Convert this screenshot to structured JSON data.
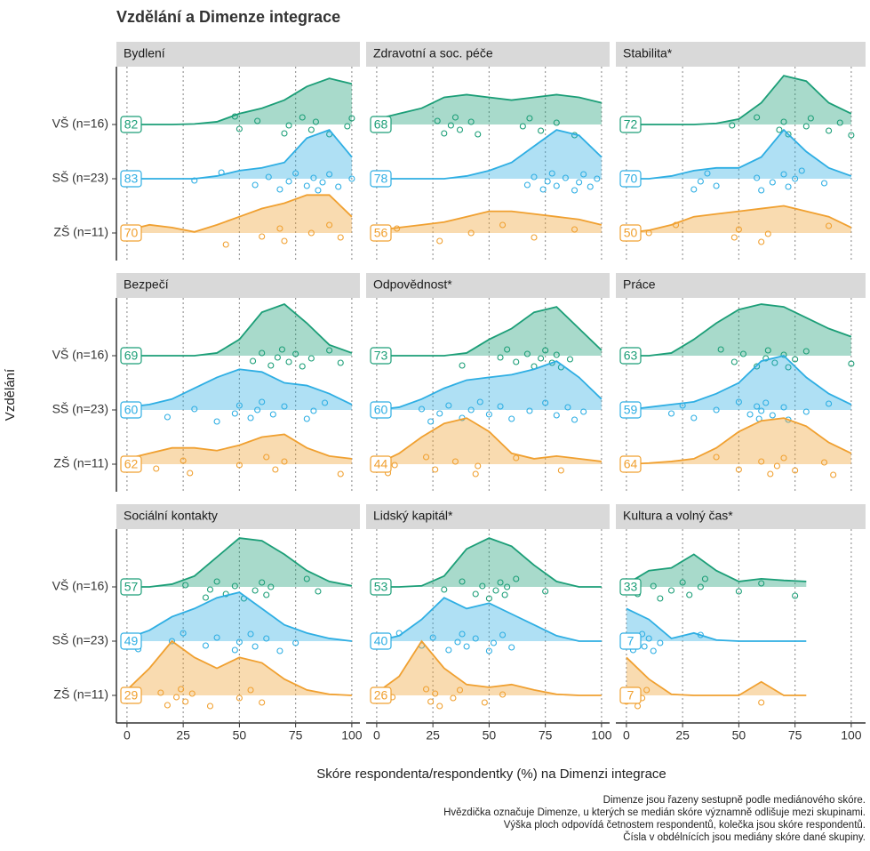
{
  "chart_data": {
    "type": "ridgeline",
    "title": "Vzdělání a Dimenze integrace",
    "x_label": "Skóre respondenta/respondentky (%) na Dimenzi integrace",
    "y_label": "Vzdělání",
    "caption": [
      "Dimenze jsou řazeny sestupně podle mediánového skóre.",
      "Hvězdička označuje Dimenze, u kterých se medián skóre významně odlišuje mezi skupinami.",
      "Výška ploch odpovídá četnostem respondentů, kolečka jsou skóre respondentů.",
      "Čísla v obdélnících jsou mediány skóre dané skupiny."
    ],
    "xlim": [
      -4.7,
      103.6
    ],
    "xticks": [
      0,
      25,
      50,
      75,
      100
    ],
    "grid": true,
    "x": [
      0,
      10,
      20,
      30,
      40,
      50,
      60,
      70,
      80,
      90,
      100
    ],
    "groups": [
      {
        "name": "VŠ (n=16)",
        "color": "#1b9e77"
      },
      {
        "name": "SŠ (n=23)",
        "color": "#2eaee3"
      },
      {
        "name": "ZŠ (n=11)",
        "color": "#f0a030"
      }
    ],
    "panels": [
      {
        "title": "Bydlení",
        "series": [
          {
            "median": 82,
            "values": [
              0,
              0,
              0,
              0.01,
              0.05,
              0.2,
              0.3,
              0.45,
              0.7,
              0.85,
              0.75
            ],
            "points": [
              48,
              50,
              58,
              70,
              72,
              78,
              82,
              84,
              90,
              98,
              100
            ]
          },
          {
            "median": 83,
            "values": [
              0,
              0,
              0,
              0,
              0.05,
              0.15,
              0.2,
              0.3,
              0.75,
              0.9,
              0.4
            ],
            "points": [
              30,
              42,
              57,
              63,
              68,
              72,
              75,
              80,
              83,
              85,
              87,
              90,
              94,
              100
            ]
          },
          {
            "median": 70,
            "values": [
              0.05,
              0.15,
              0.1,
              0.02,
              0.15,
              0.3,
              0.45,
              0.55,
              0.7,
              0.7,
              0.3
            ],
            "points": [
              44,
              60,
              68,
              70,
              82,
              90,
              95
            ]
          }
        ]
      },
      {
        "title": "Zdravotní a soc. péče",
        "series": [
          {
            "median": 68,
            "values": [
              0.1,
              0.2,
              0.3,
              0.5,
              0.55,
              0.5,
              0.45,
              0.5,
              0.55,
              0.5,
              0.4
            ],
            "points": [
              27,
              30,
              33,
              35,
              37,
              42,
              45,
              65,
              68,
              73,
              80,
              88
            ]
          },
          {
            "median": 78,
            "values": [
              0,
              0,
              0,
              0,
              0.05,
              0.15,
              0.3,
              0.6,
              0.9,
              0.8,
              0.4
            ],
            "points": [
              67,
              70,
              74,
              76,
              78,
              80,
              84,
              88,
              90,
              92,
              95,
              98
            ]
          },
          {
            "median": 56,
            "values": [
              0.05,
              0.1,
              0.15,
              0.2,
              0.3,
              0.4,
              0.4,
              0.35,
              0.3,
              0.25,
              0.15
            ],
            "points": [
              9,
              28,
              42,
              56,
              70,
              88
            ]
          }
        ]
      },
      {
        "title": "Stabilita*",
        "series": [
          {
            "median": 72,
            "values": [
              0,
              0,
              0,
              0,
              0.02,
              0.1,
              0.4,
              0.9,
              0.8,
              0.4,
              0.2
            ],
            "points": [
              47,
              58,
              68,
              70,
              72,
              80,
              82,
              90,
              95,
              100
            ]
          },
          {
            "median": 70,
            "values": [
              0,
              0,
              0.05,
              0.15,
              0.2,
              0.2,
              0.4,
              0.9,
              0.5,
              0.2,
              0.05
            ],
            "points": [
              30,
              33,
              36,
              40,
              58,
              60,
              65,
              70,
              72,
              75,
              78,
              88
            ]
          },
          {
            "median": 50,
            "values": [
              0,
              0.05,
              0.15,
              0.3,
              0.35,
              0.4,
              0.45,
              0.5,
              0.4,
              0.3,
              0.1
            ],
            "points": [
              10,
              22,
              48,
              50,
              60,
              63,
              90
            ]
          }
        ]
      },
      {
        "title": "Bezpečí",
        "series": [
          {
            "median": 69,
            "values": [
              0,
              0,
              0,
              0,
              0.05,
              0.3,
              0.8,
              0.95,
              0.6,
              0.2,
              0.05
            ],
            "points": [
              56,
              60,
              64,
              67,
              69,
              72,
              75,
              78,
              82,
              90,
              95
            ]
          },
          {
            "median": 60,
            "values": [
              0.05,
              0.1,
              0.2,
              0.4,
              0.6,
              0.75,
              0.7,
              0.5,
              0.45,
              0.3,
              0.1
            ],
            "points": [
              2,
              18,
              30,
              40,
              48,
              50,
              55,
              58,
              60,
              65,
              70,
              80,
              83,
              88
            ]
          },
          {
            "median": 62,
            "values": [
              0.1,
              0.2,
              0.3,
              0.3,
              0.25,
              0.35,
              0.5,
              0.55,
              0.3,
              0.15,
              0.1
            ],
            "points": [
              13,
              25,
              28,
              50,
              62,
              66,
              70,
              95
            ]
          }
        ]
      },
      {
        "title": "Odpovědnost*",
        "series": [
          {
            "median": 73,
            "values": [
              0,
              0,
              0,
              0,
              0.05,
              0.3,
              0.5,
              0.8,
              0.9,
              0.5,
              0.1
            ],
            "points": [
              38,
              55,
              58,
              62,
              67,
              70,
              73,
              75,
              78,
              80,
              82,
              86
            ]
          },
          {
            "median": 60,
            "values": [
              0,
              0.05,
              0.2,
              0.4,
              0.55,
              0.6,
              0.65,
              0.75,
              0.9,
              0.6,
              0.2
            ],
            "points": [
              20,
              24,
              28,
              32,
              38,
              42,
              46,
              50,
              55,
              60,
              68,
              75,
              80,
              85,
              88,
              92
            ]
          },
          {
            "median": 44,
            "values": [
              0,
              0.2,
              0.5,
              0.75,
              0.85,
              0.6,
              0.2,
              0.1,
              0.15,
              0.1,
              0.05
            ],
            "points": [
              5,
              8,
              22,
              26,
              35,
              44,
              45,
              62,
              82
            ]
          }
        ]
      },
      {
        "title": "Práce",
        "series": [
          {
            "median": 63,
            "values": [
              0,
              0,
              0.05,
              0.3,
              0.6,
              0.85,
              0.95,
              0.9,
              0.7,
              0.5,
              0.35
            ],
            "points": [
              42,
              48,
              52,
              58,
              62,
              63,
              66,
              70,
              72,
              75,
              80,
              100
            ]
          },
          {
            "median": 59,
            "values": [
              0,
              0.05,
              0.1,
              0.15,
              0.3,
              0.5,
              0.9,
              1.0,
              0.6,
              0.3,
              0.1
            ],
            "points": [
              20,
              25,
              30,
              40,
              50,
              55,
              58,
              59,
              60,
              62,
              65,
              70,
              72,
              80,
              90
            ]
          },
          {
            "median": 64,
            "values": [
              0,
              0.02,
              0.05,
              0.1,
              0.3,
              0.6,
              0.8,
              0.85,
              0.7,
              0.4,
              0.2
            ],
            "points": [
              40,
              50,
              60,
              64,
              67,
              70,
              75,
              88,
              92
            ]
          }
        ]
      },
      {
        "title": "Sociální kontakty",
        "series": [
          {
            "median": 57,
            "values": [
              0,
              0,
              0.05,
              0.2,
              0.55,
              0.9,
              0.85,
              0.6,
              0.3,
              0.1,
              0.02
            ],
            "points": [
              26,
              35,
              37,
              40,
              44,
              48,
              52,
              57,
              60,
              62,
              64,
              80,
              85
            ]
          },
          {
            "median": 49,
            "values": [
              0.05,
              0.2,
              0.45,
              0.6,
              0.8,
              0.9,
              0.6,
              0.3,
              0.15,
              0.05,
              0
            ],
            "points": [
              5,
              20,
              25,
              35,
              40,
              48,
              50,
              55,
              57,
              62,
              68,
              75
            ]
          },
          {
            "median": 29,
            "values": [
              0.1,
              0.5,
              1.0,
              0.7,
              0.5,
              0.7,
              0.6,
              0.3,
              0.1,
              0.02,
              0
            ],
            "points": [
              15,
              18,
              22,
              24,
              26,
              29,
              37,
              50,
              55,
              60
            ]
          }
        ]
      },
      {
        "title": "Lidský kapitál*",
        "series": [
          {
            "median": 53,
            "values": [
              0,
              0,
              0.02,
              0.2,
              0.7,
              0.9,
              0.75,
              0.4,
              0.1,
              0,
              0
            ],
            "points": [
              30,
              38,
              44,
              47,
              50,
              53,
              55,
              57,
              58,
              62,
              75
            ]
          },
          {
            "median": 40,
            "values": [
              0,
              0.1,
              0.4,
              0.8,
              0.6,
              0.7,
              0.5,
              0.3,
              0.1,
              0,
              0
            ],
            "points": [
              10,
              20,
              25,
              32,
              36,
              38,
              40,
              44,
              50,
              52,
              56,
              60
            ]
          },
          {
            "median": 26,
            "values": [
              0.05,
              0.35,
              1.0,
              0.5,
              0.2,
              0.15,
              0.2,
              0.1,
              0.02,
              0,
              0
            ],
            "points": [
              7,
              22,
              24,
              26,
              28,
              34,
              37,
              48,
              56
            ]
          }
        ]
      },
      {
        "title": "Kultura a volný čas*",
        "series": [
          {
            "median": 33,
            "values": [
              0.05,
              0.3,
              0.35,
              0.6,
              0.3,
              0.1,
              0.15,
              0.12,
              0.1,
              null,
              null
            ],
            "points": [
              5,
              12,
              15,
              20,
              25,
              28,
              33,
              35,
              50,
              60,
              75
            ]
          },
          {
            "median": 7,
            "values": [
              0.6,
              0.4,
              0.05,
              0.15,
              0.02,
              0,
              0,
              0,
              0,
              null,
              null
            ],
            "points": [
              0,
              3,
              5,
              7,
              8,
              10,
              12,
              15,
              33
            ]
          },
          {
            "median": 7,
            "values": [
              0.7,
              0.3,
              0.02,
              0,
              0,
              0,
              0.25,
              0,
              0,
              null,
              null
            ],
            "points": [
              0,
              3,
              5,
              7,
              9,
              60
            ]
          }
        ]
      }
    ]
  }
}
